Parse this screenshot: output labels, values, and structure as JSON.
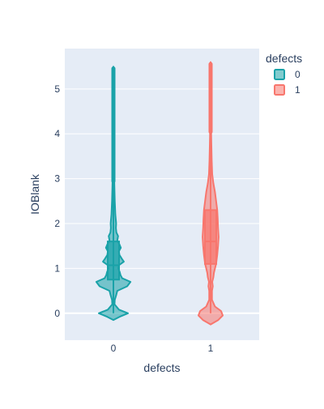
{
  "chart_data": {
    "type": "violin",
    "title": "",
    "xlabel": "defects",
    "ylabel": "IOBlank",
    "categories": [
      "0",
      "1"
    ],
    "ylim": [
      -0.6,
      5.9
    ],
    "y_ticks": [
      0,
      1,
      2,
      3,
      4,
      5
    ],
    "grid": true,
    "legend": {
      "title": "defects",
      "position": "top-right",
      "entries": [
        "0",
        "1"
      ]
    },
    "series": [
      {
        "name": "0",
        "color": "#19a2a8",
        "box": {
          "q1": 0.75,
          "median": 1.07,
          "q3": 1.6,
          "whisker_low": 0.0,
          "whisker_high": 2.9
        },
        "outliers_range": [
          2.9,
          5.5
        ],
        "density_profile": [
          [
            -0.15,
            0.0
          ],
          [
            -0.08,
            0.22
          ],
          [
            0.0,
            0.53
          ],
          [
            0.08,
            0.2
          ],
          [
            0.2,
            0.04
          ],
          [
            0.3,
            0.05
          ],
          [
            0.4,
            0.1
          ],
          [
            0.5,
            0.14
          ],
          [
            0.6,
            0.5
          ],
          [
            0.7,
            0.62
          ],
          [
            0.78,
            0.32
          ],
          [
            0.85,
            0.26
          ],
          [
            0.92,
            0.23
          ],
          [
            1.0,
            0.18
          ],
          [
            1.07,
            0.2
          ],
          [
            1.15,
            0.38
          ],
          [
            1.22,
            0.3
          ],
          [
            1.3,
            0.22
          ],
          [
            1.38,
            0.2
          ],
          [
            1.46,
            0.27
          ],
          [
            1.55,
            0.21
          ],
          [
            1.62,
            0.14
          ],
          [
            1.72,
            0.17
          ],
          [
            1.8,
            0.11
          ],
          [
            1.9,
            0.09
          ],
          [
            2.0,
            0.1
          ],
          [
            2.2,
            0.07
          ],
          [
            2.5,
            0.05
          ],
          [
            3.0,
            0.03
          ],
          [
            3.5,
            0.02
          ],
          [
            4.0,
            0.015
          ],
          [
            4.5,
            0.012
          ],
          [
            5.0,
            0.01
          ],
          [
            5.5,
            0.0
          ]
        ]
      },
      {
        "name": "1",
        "color": "#f8766d",
        "box": {
          "q1": 1.1,
          "median": 1.6,
          "q3": 2.3,
          "whisker_low": 0.0,
          "whisker_high": 4.0
        },
        "outliers_range": [
          4.0,
          5.6
        ],
        "density_profile": [
          [
            -0.25,
            0.0
          ],
          [
            -0.15,
            0.28
          ],
          [
            -0.05,
            0.44
          ],
          [
            0.05,
            0.38
          ],
          [
            0.15,
            0.16
          ],
          [
            0.3,
            0.05
          ],
          [
            0.5,
            0.05
          ],
          [
            0.6,
            0.08
          ],
          [
            0.7,
            0.06
          ],
          [
            0.8,
            0.1
          ],
          [
            0.9,
            0.12
          ],
          [
            1.0,
            0.16
          ],
          [
            1.1,
            0.2
          ],
          [
            1.3,
            0.24
          ],
          [
            1.5,
            0.27
          ],
          [
            1.7,
            0.29
          ],
          [
            1.9,
            0.27
          ],
          [
            2.1,
            0.26
          ],
          [
            2.3,
            0.24
          ],
          [
            2.5,
            0.2
          ],
          [
            2.7,
            0.16
          ],
          [
            2.9,
            0.1
          ],
          [
            3.1,
            0.06
          ],
          [
            3.4,
            0.04
          ],
          [
            3.8,
            0.025
          ],
          [
            4.2,
            0.015
          ],
          [
            4.7,
            0.01
          ],
          [
            5.2,
            0.008
          ],
          [
            5.6,
            0.0
          ]
        ]
      }
    ]
  }
}
